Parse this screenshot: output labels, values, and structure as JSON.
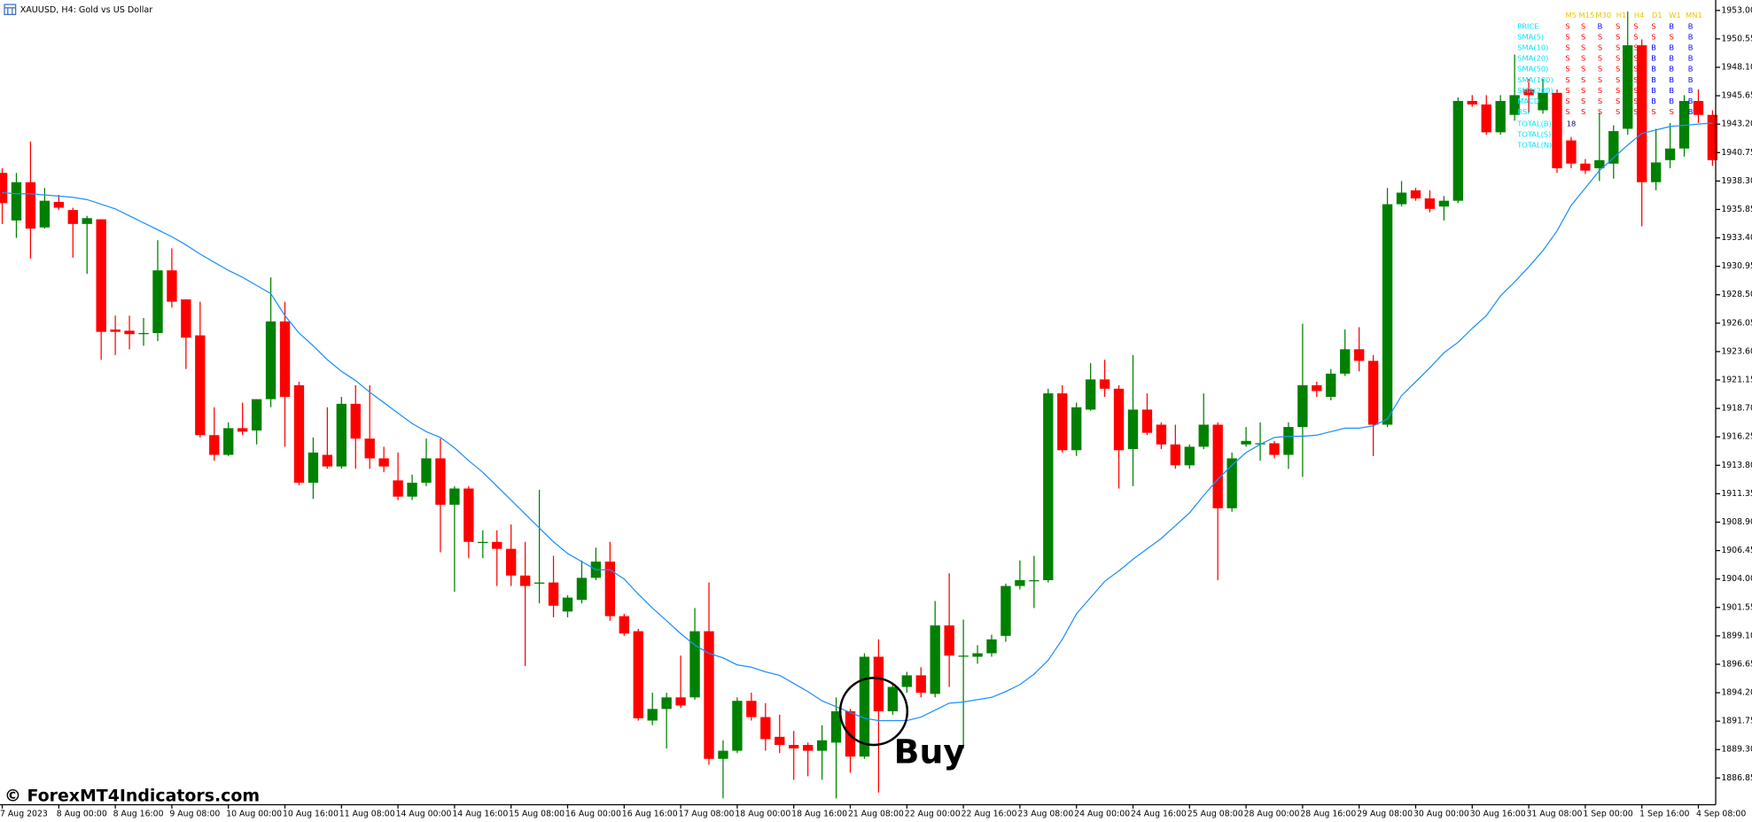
{
  "header": {
    "title": "XAUUSD, H4:  Gold vs US Dollar"
  },
  "watermark": "© ForexMT4Indicators.com",
  "dashboard": {
    "header_color": "#e6c800",
    "label_color": "#00e5ff",
    "total_color": "#000080",
    "signal_colors": {
      "S": "#ff0000",
      "B": "#0000ff"
    },
    "columns": [
      "M5",
      "M15",
      "M30",
      "H1",
      "H4",
      "D1",
      "W1",
      "MN1"
    ],
    "rows": [
      {
        "label": "PRICE",
        "cells": [
          "S",
          "S",
          "B",
          "S",
          "S",
          "S",
          "B",
          "B"
        ]
      },
      {
        "label": "SMA(5)",
        "cells": [
          "S",
          "S",
          "S",
          "S",
          "S",
          "S",
          "S",
          "B"
        ]
      },
      {
        "label": "SMA(10)",
        "cells": [
          "S",
          "S",
          "S",
          "S",
          "S",
          "B",
          "B",
          "B"
        ]
      },
      {
        "label": "SMA(20)",
        "cells": [
          "S",
          "S",
          "S",
          "S",
          "S",
          "B",
          "B",
          "B"
        ]
      },
      {
        "label": "SMA(50)",
        "cells": [
          "S",
          "S",
          "S",
          "S",
          "S",
          "B",
          "B",
          "B"
        ]
      },
      {
        "label": "SMA(100)",
        "cells": [
          "S",
          "S",
          "S",
          "S",
          "S",
          "B",
          "B",
          "B"
        ]
      },
      {
        "label": "SMA(200)",
        "cells": [
          "S",
          "S",
          "S",
          "S",
          "S",
          "B",
          "B",
          "B"
        ]
      },
      {
        "label": "MACD",
        "cells": [
          "S",
          "S",
          "S",
          "S",
          "S",
          "B",
          "B",
          "B"
        ]
      },
      {
        "label": "RSI",
        "cells": [
          "S",
          "S",
          "S",
          "S",
          "S",
          "S",
          "S",
          "B"
        ]
      }
    ],
    "totals": [
      {
        "label": "TOTAL(B)",
        "value": 18
      },
      {
        "label": "TOTAL(S)"
      },
      {
        "label": "TOTAL(N)"
      }
    ]
  },
  "chart_data": {
    "type": "candlestick",
    "annotation": "Buy",
    "up_color": "#008000",
    "down_color": "#ff0000",
    "grid": false,
    "x": [
      "7 Aug 2023",
      null,
      null,
      null,
      "8 Aug 00:00",
      null,
      null,
      null,
      "8 Aug 16:00",
      null,
      null,
      null,
      "9 Aug 08:00",
      null,
      null,
      null,
      "10 Aug 00:00",
      null,
      null,
      null,
      "10 Aug 16:00",
      null,
      null,
      null,
      "11 Aug 08:00",
      null,
      null,
      null,
      "14 Aug 00:00",
      null,
      null,
      null,
      "14 Aug 16:00",
      null,
      null,
      null,
      "15 Aug 08:00",
      null,
      null,
      null,
      "16 Aug 00:00",
      null,
      null,
      null,
      "16 Aug 16:00",
      null,
      null,
      null,
      "17 Aug 08:00",
      null,
      null,
      null,
      "18 Aug 00:00",
      null,
      null,
      null,
      "18 Aug 16:00",
      null,
      null,
      null,
      "21 Aug 08:00",
      null,
      null,
      null,
      "22 Aug 00:00",
      null,
      null,
      null,
      "22 Aug 16:00",
      null,
      null,
      null,
      "23 Aug 08:00",
      null,
      null,
      null,
      "24 Aug 00:00",
      null,
      null,
      null,
      "24 Aug 16:00",
      null,
      null,
      null,
      "25 Aug 08:00",
      null,
      null,
      null,
      "28 Aug 00:00",
      null,
      null,
      null,
      "28 Aug 16:00",
      null,
      null,
      null,
      "29 Aug 08:00",
      null,
      null,
      null,
      "30 Aug 00:00",
      null,
      null,
      null,
      "30 Aug 16:00",
      null,
      null,
      null,
      "31 Aug 08:00",
      null,
      null,
      null,
      "1 Sep 00:00",
      null,
      null,
      null,
      "1 Sep 16:00",
      null,
      null,
      null,
      "4 Sep 08:00",
      null
    ],
    "open": [
      1939.0,
      1934.9,
      1938.2,
      1934.3,
      1936.5,
      1935.8,
      1934.6,
      1935.0,
      1925.5,
      1925.4,
      1925.2,
      1925.2,
      1930.6,
      1928.1,
      1925.0,
      1916.4,
      1914.7,
      1917.0,
      1916.8,
      1919.5,
      1926.2,
      1920.7,
      1912.3,
      1914.7,
      1913.7,
      1919.1,
      1916.1,
      1914.4,
      1912.5,
      1911.1,
      1912.3,
      1914.4,
      1910.4,
      1911.8,
      1907.2,
      1907.2,
      1906.6,
      1904.3,
      1903.6,
      1903.7,
      1901.2,
      1902.2,
      1904.1,
      1905.5,
      1900.8,
      1899.5,
      1891.8,
      1892.8,
      1893.8,
      1893.8,
      1899.5,
      1888.5,
      1889.2,
      1893.5,
      1892.1,
      1890.4,
      1889.7,
      1889.7,
      1889.2,
      1889.9,
      1892.6,
      1888.7,
      1897.3,
      1892.6,
      1894.7,
      1895.7,
      1894.1,
      1900.0,
      1897.4,
      1897.3,
      1897.6,
      1899.1,
      1903.4,
      1903.9,
      1903.9,
      1920.0,
      1915.1,
      1918.6,
      1921.2,
      1920.4,
      1915.2,
      1918.6,
      1917.3,
      1915.6,
      1913.8,
      1915.4,
      1917.3,
      1910.1,
      1915.6,
      1915.7,
      1915.7,
      1914.7,
      1917.1,
      1920.7,
      1919.7,
      1921.7,
      1923.8,
      1922.8,
      1917.3,
      1936.3,
      1937.5,
      1936.8,
      1936.1,
      1936.6,
      1945.2,
      1944.9,
      1942.5,
      1944.0,
      1946.2,
      1944.4,
      1945.9,
      1941.8,
      1939.8,
      1939.4,
      1939.8,
      1942.8,
      1950.0,
      1938.2,
      1940.1,
      1941.1,
      1945.2,
      1944.0
    ],
    "high": [
      1939.4,
      1939.0,
      1941.7,
      1937.7,
      1937.1,
      1936.0,
      1935.3,
      1935.0,
      1926.7,
      1926.7,
      1926.5,
      1933.2,
      1932.5,
      1928.1,
      1927.9,
      1918.8,
      1917.5,
      1919.2,
      1919.5,
      1930.0,
      1927.9,
      1921.0,
      1916.2,
      1918.8,
      1919.7,
      1920.7,
      1920.7,
      1915.4,
      1914.9,
      1913.0,
      1916.1,
      1916.1,
      1912.0,
      1912.0,
      1908.2,
      1908.2,
      1908.7,
      1907.2,
      1911.7,
      1906.0,
      1902.6,
      1905.6,
      1906.7,
      1907.2,
      1901.0,
      1899.7,
      1894.2,
      1894.2,
      1897.4,
      1901.5,
      1903.7,
      1890.1,
      1893.8,
      1894.2,
      1893.3,
      1892.3,
      1890.9,
      1889.9,
      1891.4,
      1893.8,
      1892.8,
      1897.6,
      1898.8,
      1895.0,
      1896.0,
      1896.4,
      1902.1,
      1904.5,
      1900.5,
      1898.3,
      1899.2,
      1903.6,
      1905.6,
      1906.0,
      1920.4,
      1920.7,
      1919.2,
      1922.6,
      1922.9,
      1920.7,
      1923.3,
      1920.0,
      1917.5,
      1917.3,
      1915.6,
      1920.0,
      1917.5,
      1914.9,
      1917.1,
      1917.5,
      1915.9,
      1917.5,
      1926.0,
      1921.0,
      1922.1,
      1925.5,
      1925.7,
      1923.3,
      1937.7,
      1938.3,
      1937.7,
      1937.5,
      1937.0,
      1945.5,
      1945.7,
      1945.7,
      1945.7,
      1949.2,
      1947.1,
      1947.1,
      1946.2,
      1942.1,
      1940.2,
      1944.2,
      1943.1,
      1952.9,
      1950.5,
      1942.8,
      1943.3,
      1945.7,
      1946.2,
      1944.4
    ],
    "low": [
      1934.6,
      1933.4,
      1931.6,
      1934.2,
      1935.8,
      1931.7,
      1930.3,
      1922.9,
      1923.3,
      1923.8,
      1924.1,
      1924.5,
      1927.4,
      1922.1,
      1916.2,
      1914.2,
      1914.6,
      1916.4,
      1915.6,
      1918.8,
      1915.4,
      1912.1,
      1910.9,
      1913.5,
      1913.5,
      1913.5,
      1913.5,
      1913.2,
      1910.8,
      1910.8,
      1912.0,
      1906.3,
      1902.9,
      1905.8,
      1905.8,
      1903.4,
      1903.4,
      1896.5,
      1901.9,
      1900.7,
      1900.7,
      1901.9,
      1903.9,
      1900.4,
      1899.1,
      1891.8,
      1891.4,
      1889.4,
      1892.9,
      1893.6,
      1888.0,
      1885.1,
      1889.0,
      1891.8,
      1889.2,
      1889.0,
      1886.7,
      1887.0,
      1886.7,
      1885.1,
      1887.3,
      1888.5,
      1885.6,
      1892.3,
      1894.2,
      1893.8,
      1893.8,
      1894.7,
      1889.4,
      1896.7,
      1897.3,
      1898.6,
      1903.1,
      1901.5,
      1903.7,
      1914.9,
      1914.6,
      1918.5,
      1919.7,
      1911.8,
      1912.0,
      1916.4,
      1915.2,
      1913.5,
      1913.5,
      1915.2,
      1903.9,
      1909.8,
      1915.4,
      1914.2,
      1914.4,
      1913.5,
      1912.8,
      1919.7,
      1919.4,
      1921.5,
      1921.9,
      1914.6,
      1917.1,
      1936.1,
      1936.6,
      1935.6,
      1934.9,
      1936.4,
      1944.7,
      1942.3,
      1942.3,
      1943.5,
      1944.2,
      1944.1,
      1939.0,
      1939.4,
      1938.9,
      1938.3,
      1938.5,
      1942.3,
      1934.4,
      1937.5,
      1939.4,
      1940.4,
      1943.3,
      1939.6
    ],
    "close": [
      1936.4,
      1938.2,
      1934.2,
      1936.6,
      1936.0,
      1934.6,
      1935.1,
      1925.3,
      1925.3,
      1925.1,
      1925.2,
      1930.6,
      1927.9,
      1924.8,
      1916.4,
      1914.7,
      1917.0,
      1916.7,
      1919.5,
      1926.2,
      1919.7,
      1912.3,
      1914.9,
      1913.7,
      1919.1,
      1916.1,
      1914.4,
      1913.7,
      1911.1,
      1912.3,
      1914.4,
      1910.4,
      1911.8,
      1907.2,
      1907.2,
      1906.6,
      1904.3,
      1903.4,
      1903.7,
      1901.7,
      1902.4,
      1904.1,
      1905.5,
      1900.8,
      1899.3,
      1892.0,
      1892.8,
      1893.8,
      1893.1,
      1899.5,
      1888.5,
      1889.2,
      1893.5,
      1892.1,
      1890.2,
      1889.7,
      1889.4,
      1889.2,
      1890.1,
      1892.6,
      1888.7,
      1897.3,
      1892.6,
      1894.7,
      1895.7,
      1894.2,
      1900.0,
      1897.4,
      1897.4,
      1897.6,
      1898.8,
      1903.4,
      1903.9,
      1903.9,
      1920.0,
      1915.1,
      1918.8,
      1921.2,
      1920.4,
      1915.1,
      1918.6,
      1916.6,
      1915.6,
      1913.8,
      1915.4,
      1917.3,
      1910.1,
      1914.4,
      1915.9,
      1915.7,
      1914.7,
      1917.1,
      1920.7,
      1920.2,
      1921.7,
      1923.8,
      1922.8,
      1917.3,
      1936.3,
      1937.3,
      1936.8,
      1935.9,
      1936.6,
      1945.2,
      1944.9,
      1942.5,
      1945.2,
      1945.7,
      1945.7,
      1945.9,
      1939.4,
      1939.8,
      1939.2,
      1940.1,
      1942.6,
      1950.0,
      1938.2,
      1939.9,
      1941.1,
      1945.2,
      1944.0,
      1940.1
    ],
    "sma": {
      "color": "#1e90ff",
      "values": [
        1937.3,
        1937.2,
        1937.2,
        1937.1,
        1937.0,
        1936.9,
        1936.7,
        1936.3,
        1935.9,
        1935.3,
        1934.7,
        1934.1,
        1933.5,
        1932.8,
        1932.0,
        1931.3,
        1930.6,
        1930.0,
        1929.3,
        1928.6,
        1926.7,
        1925.2,
        1924.1,
        1922.9,
        1921.9,
        1921.1,
        1920.1,
        1919.2,
        1918.3,
        1917.4,
        1916.7,
        1916.2,
        1915.3,
        1914.2,
        1913.2,
        1912.0,
        1910.8,
        1909.6,
        1908.4,
        1907.2,
        1906.2,
        1905.5,
        1904.8,
        1904.8,
        1904.0,
        1902.7,
        1901.5,
        1900.4,
        1899.3,
        1898.3,
        1897.6,
        1897.2,
        1896.6,
        1896.4,
        1896.0,
        1895.7,
        1895.0,
        1894.3,
        1893.5,
        1893.0,
        1892.5,
        1892.0,
        1891.8,
        1891.8,
        1891.8,
        1892.1,
        1892.7,
        1893.3,
        1893.4,
        1893.6,
        1893.8,
        1894.3,
        1894.9,
        1895.8,
        1897.0,
        1898.8,
        1901.0,
        1902.4,
        1903.8,
        1904.7,
        1905.7,
        1906.6,
        1907.5,
        1908.6,
        1909.7,
        1911.2,
        1912.6,
        1913.8,
        1914.9,
        1915.6,
        1916.2,
        1916.3,
        1916.3,
        1916.4,
        1916.7,
        1917.0,
        1917.0,
        1917.2,
        1917.8,
        1919.8,
        1921.0,
        1922.2,
        1923.5,
        1924.4,
        1925.6,
        1926.7,
        1928.4,
        1929.6,
        1930.9,
        1932.3,
        1934.0,
        1936.2,
        1937.7,
        1939.2,
        1940.3,
        1941.4,
        1942.4,
        1942.7,
        1943.0,
        1943.1,
        1943.2,
        1943.3
      ]
    },
    "ylim": [
      1884.6,
      1953.9
    ],
    "yticks": [
      {
        "value": 1953,
        "label": "1953.00"
      },
      1950.55,
      {
        "value": 1948.1,
        "label": "1948.10"
      },
      1945.65,
      {
        "value": 1943.2,
        "label": "1943.20"
      },
      1940.75,
      {
        "value": 1938.3,
        "label": "1938.30"
      },
      1935.85,
      {
        "value": 1933.4,
        "label": "1933.40"
      },
      1930.95,
      {
        "value": 1928.5,
        "label": "1928.50"
      },
      1926.05,
      {
        "value": 1923.6,
        "label": "1923.60"
      },
      1921.15,
      {
        "value": 1918.7,
        "label": "1918.70"
      },
      1916.25,
      {
        "value": 1913.8,
        "label": "1913.80"
      },
      1911.35,
      {
        "value": 1908.9,
        "label": "1908.90"
      },
      1906.45,
      {
        "value": 1904,
        "label": "1904.00"
      },
      1901.55,
      {
        "value": 1899.1,
        "label": "1899.10"
      },
      1896.65,
      {
        "value": 1894.2,
        "label": "1894.20"
      },
      1891.75,
      {
        "value": 1889.3,
        "label": "1889.30"
      },
      1886.85
    ]
  }
}
